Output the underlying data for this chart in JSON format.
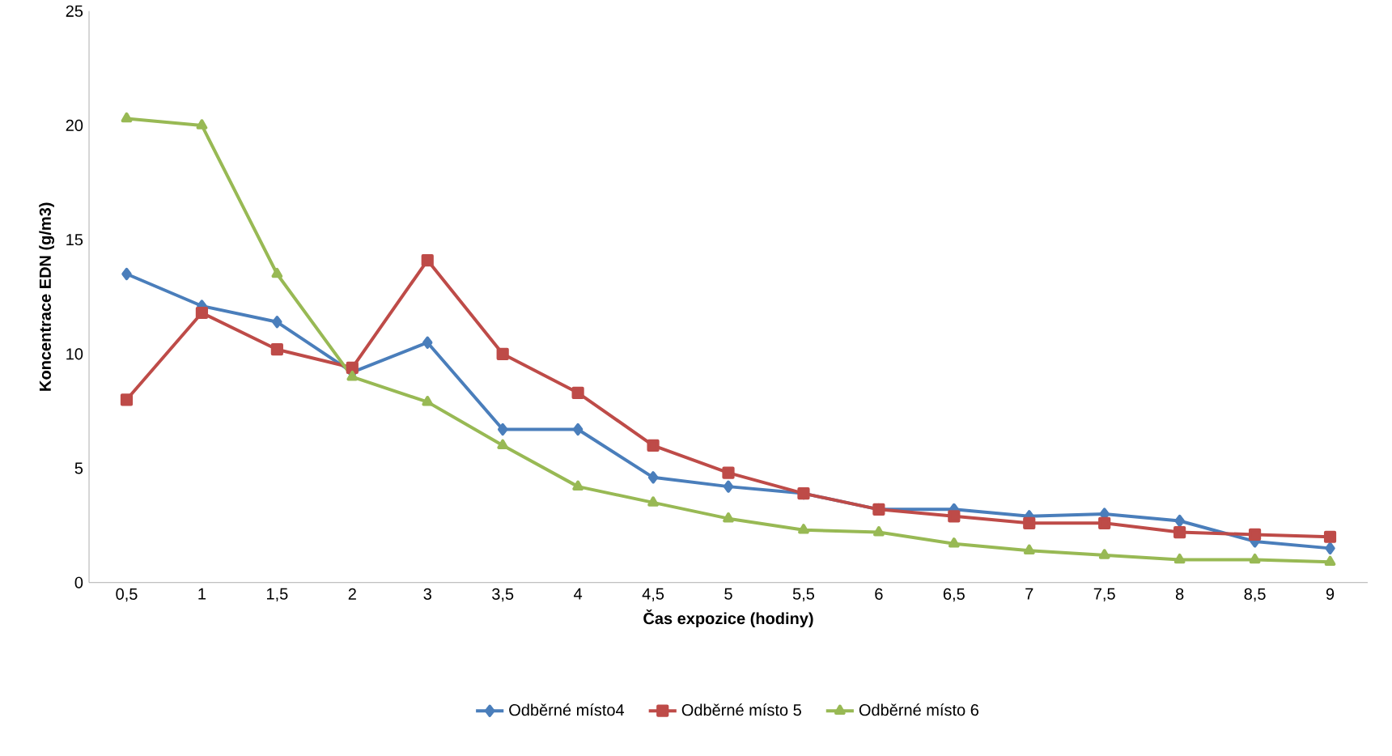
{
  "chart_data": {
    "type": "line",
    "xlabel": "Čas expozice (hodiny)",
    "ylabel": "Koncentrace EDN (g/m3)",
    "categories": [
      "0,5",
      "1",
      "1,5",
      "2",
      "3",
      "3,5",
      "4",
      "4,5",
      "5",
      "5,5",
      "6",
      "6,5",
      "7",
      "7,5",
      "8",
      "8,5",
      "9"
    ],
    "ylim": [
      0,
      25
    ],
    "yticks": [
      0,
      5,
      10,
      15,
      20,
      25
    ],
    "grid": false,
    "legend": "bottom",
    "line_style": "solid",
    "series": [
      {
        "name": "Odběrné místo4",
        "color": "#4a7ebb",
        "marker": "diamond",
        "values": [
          13.5,
          12.1,
          11.4,
          9.2,
          10.5,
          6.7,
          6.7,
          4.6,
          4.2,
          3.9,
          3.2,
          3.2,
          2.9,
          3.0,
          2.7,
          1.8,
          1.5
        ]
      },
      {
        "name": "Odběrné místo 5",
        "color": "#be4b48",
        "marker": "square",
        "values": [
          8.0,
          11.8,
          10.2,
          9.4,
          14.1,
          10.0,
          8.3,
          6.0,
          4.8,
          3.9,
          3.2,
          2.9,
          2.6,
          2.6,
          2.2,
          2.1,
          2.0
        ]
      },
      {
        "name": "Odběrné místo 6",
        "color": "#98b954",
        "marker": "triangle",
        "values": [
          20.3,
          20.0,
          13.5,
          9.0,
          7.9,
          6.0,
          4.2,
          3.5,
          2.8,
          2.3,
          2.2,
          1.7,
          1.4,
          1.2,
          1.0,
          1.0,
          0.9
        ]
      }
    ]
  }
}
